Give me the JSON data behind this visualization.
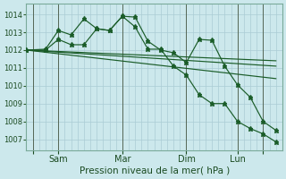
{
  "background_color": "#cce8ec",
  "grid_color": "#aaccd4",
  "line_color": "#1a5c28",
  "xlabel": "Pression niveau de la mer( hPa )",
  "ylim": [
    1006.4,
    1014.6
  ],
  "yticks": [
    1007,
    1008,
    1009,
    1010,
    1011,
    1012,
    1013,
    1014
  ],
  "xlim": [
    0,
    40
  ],
  "x_tick_positions": [
    1,
    5,
    15,
    25,
    33,
    37
  ],
  "x_tick_labels": [
    "",
    "Sam",
    "Mar",
    "Dim",
    "Lun",
    ""
  ],
  "series_with_markers": [
    {
      "x": [
        0,
        3,
        5,
        7,
        9,
        11,
        13,
        15,
        17,
        19,
        21,
        23,
        25,
        27,
        29,
        31,
        33,
        35,
        37,
        39
      ],
      "y": [
        1012.0,
        1012.05,
        1013.1,
        1012.85,
        1013.75,
        1013.2,
        1013.1,
        1013.9,
        1013.85,
        1012.5,
        1012.0,
        1011.85,
        1011.3,
        1012.6,
        1012.55,
        1011.1,
        1010.05,
        1009.35,
        1008.0,
        1007.5
      ]
    },
    {
      "x": [
        0,
        3,
        5,
        7,
        9,
        11,
        13,
        15,
        17,
        19,
        21,
        23,
        25,
        27,
        29,
        31,
        33,
        35,
        37,
        39
      ],
      "y": [
        1012.0,
        1012.0,
        1012.6,
        1012.3,
        1012.3,
        1013.2,
        1013.1,
        1013.9,
        1013.3,
        1012.05,
        1012.05,
        1011.1,
        1010.6,
        1009.5,
        1009.0,
        1009.0,
        1008.0,
        1007.6,
        1007.3,
        1006.85
      ]
    }
  ],
  "series_lines": [
    {
      "x": [
        0,
        39
      ],
      "y": [
        1012.0,
        1011.4
      ]
    },
    {
      "x": [
        0,
        39
      ],
      "y": [
        1012.0,
        1011.1
      ]
    },
    {
      "x": [
        0,
        39
      ],
      "y": [
        1012.0,
        1010.4
      ]
    }
  ],
  "markersize": 2.5,
  "linewidth": 1.0
}
